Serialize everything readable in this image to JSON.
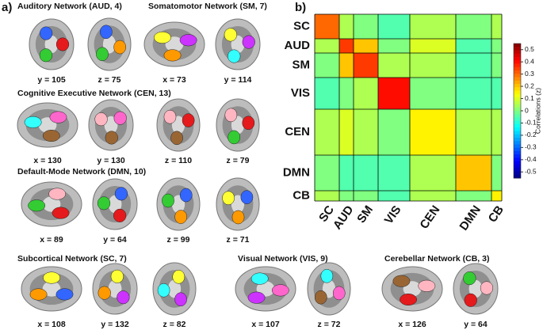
{
  "panel_a": {
    "label": "a)",
    "networks": [
      {
        "title": "Auditory Network (AUD, 4)",
        "slices": [
          "y = 105",
          "z = 75"
        ]
      },
      {
        "title": "Somatomotor Network (SM, 7)",
        "slices": [
          "x = 73",
          "y = 114"
        ]
      },
      {
        "title": "Cognitive Executive Network (CEN, 13)",
        "slices": [
          "x = 130",
          "y = 130",
          "z = 110",
          "z = 79"
        ]
      },
      {
        "title": "Default-Mode Network (DMN, 10)",
        "slices": [
          "x = 89",
          "y = 64",
          "z = 99",
          "z = 71"
        ]
      },
      {
        "title": "Subcortical Network (SC, 7)",
        "slices": [
          "x = 108",
          "y = 132",
          "z = 82"
        ]
      },
      {
        "title": "Visual Network (VIS, 9)",
        "slices": [
          "x = 107",
          "z = 72"
        ]
      },
      {
        "title": "Cerebellar Network (CB, 3)",
        "slices": [
          "x = 126",
          "y = 64"
        ]
      }
    ]
  },
  "chart_data": {
    "type": "heatmap",
    "label": "b)",
    "categories": [
      "SC",
      "AUD",
      "SM",
      "VIS",
      "CEN",
      "DMN",
      "CB"
    ],
    "values": [
      [
        0.3,
        0.05,
        0.0,
        -0.05,
        0.05,
        0.0,
        0.05
      ],
      [
        0.05,
        0.35,
        0.2,
        0.0,
        0.1,
        -0.05,
        0.0
      ],
      [
        0.0,
        0.2,
        0.35,
        0.05,
        0.05,
        -0.05,
        0.0
      ],
      [
        -0.05,
        0.0,
        0.05,
        0.4,
        0.0,
        -0.05,
        -0.05
      ],
      [
        0.05,
        0.1,
        0.05,
        0.0,
        0.15,
        0.05,
        0.05
      ],
      [
        0.0,
        -0.05,
        -0.05,
        -0.05,
        0.05,
        0.2,
        0.0
      ],
      [
        0.05,
        0.0,
        0.0,
        -0.05,
        0.05,
        0.0,
        0.15
      ]
    ],
    "colorbar_label": "Correlations (z)",
    "zlim": [
      -0.55,
      0.55
    ],
    "zticks": [
      0.5,
      0.4,
      0.3,
      0.2,
      0.1,
      0,
      -0.1,
      -0.2,
      -0.3,
      -0.4,
      -0.5
    ],
    "colormap": "jet"
  }
}
